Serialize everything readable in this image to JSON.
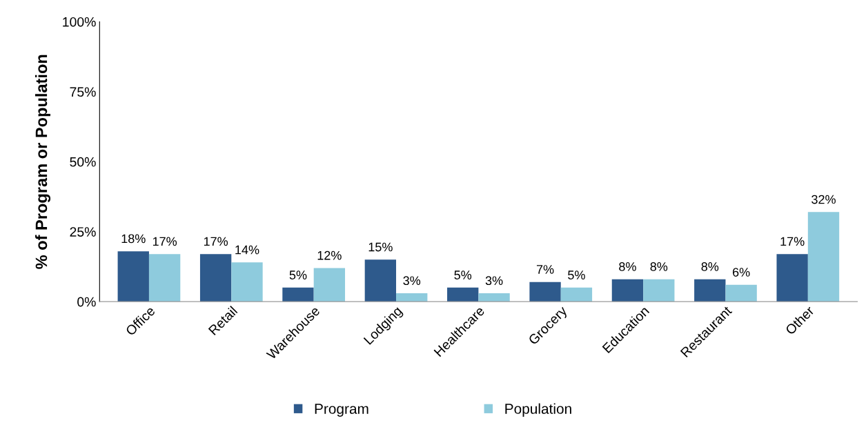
{
  "chart_data": {
    "type": "bar",
    "ylabel": "% of Program or Population",
    "categories": [
      "Office",
      "Retail",
      "Warehouse",
      "Lodging",
      "Healthcare",
      "Grocery",
      "Education",
      "Restaurant",
      "Other"
    ],
    "series": [
      {
        "name": "Program",
        "color": "#2e5a8c",
        "values": [
          18,
          17,
          5,
          15,
          5,
          7,
          8,
          8,
          17
        ],
        "value_labels": [
          "18%",
          "17%",
          "5%",
          "15%",
          "5%",
          "7%",
          "8%",
          "8%",
          "17%"
        ]
      },
      {
        "name": "Population",
        "color": "#8ecbdd",
        "values": [
          17,
          14,
          12,
          3,
          3,
          5,
          8,
          6,
          32
        ],
        "value_labels": [
          "17%",
          "14%",
          "12%",
          "3%",
          "3%",
          "5%",
          "8%",
          "6%",
          "32%"
        ]
      }
    ],
    "ylim": [
      0,
      100
    ],
    "yticks": [
      {
        "value": 0,
        "label": "0%"
      },
      {
        "value": 25,
        "label": "25%"
      },
      {
        "value": 50,
        "label": "50%"
      },
      {
        "value": 75,
        "label": "75%"
      },
      {
        "value": 100,
        "label": "100%"
      }
    ],
    "grid": false,
    "legend": "bottom"
  }
}
